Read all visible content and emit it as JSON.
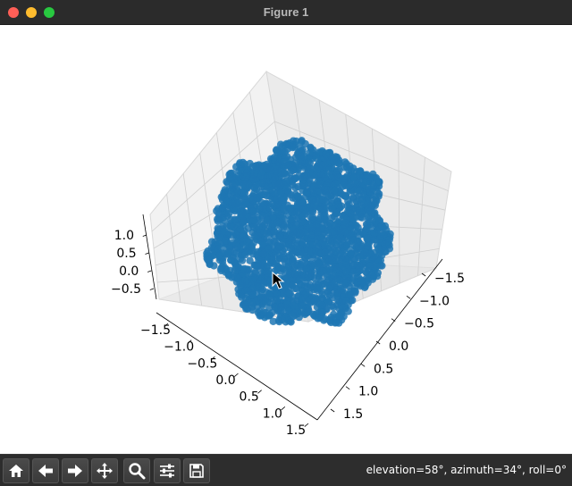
{
  "window": {
    "title": "Figure 1"
  },
  "toolbar": {
    "buttons": [
      {
        "name": "home-button",
        "icon": "home-icon"
      },
      {
        "name": "back-button",
        "icon": "arrow-left-icon"
      },
      {
        "name": "forward-button",
        "icon": "arrow-right-icon"
      },
      {
        "name": "pan-button",
        "icon": "move-icon"
      },
      {
        "name": "zoom-button",
        "icon": "magnifier-icon"
      },
      {
        "name": "configure-subplots-button",
        "icon": "sliders-icon"
      },
      {
        "name": "save-button",
        "icon": "floppy-disk-icon"
      }
    ],
    "status": "elevation=58°, azimuth=34°, roll=0°"
  },
  "chart_data": {
    "type": "scatter",
    "projection": "3d",
    "view": {
      "elevation": 58,
      "azimuth": 34,
      "roll": 0
    },
    "series": [
      {
        "color": "#1f77b4",
        "shape": "dense ball of points with radius about 1"
      }
    ],
    "axes": {
      "x": {
        "ticks": [
          "−1.5",
          "−1.0",
          "−0.5",
          "0.0",
          "0.5",
          "1.0",
          "1.5"
        ],
        "range": [
          -1.5,
          1.5
        ]
      },
      "y": {
        "ticks": [
          "−1.5",
          "−1.0",
          "−0.5",
          "0.0",
          "0.5",
          "1.0",
          "1.5"
        ],
        "range": [
          -1.5,
          1.5
        ]
      },
      "z": {
        "ticks": [
          "−0.5",
          "0.0",
          "0.5",
          "1.0"
        ],
        "range": [
          -0.8,
          1.2
        ]
      }
    },
    "grid": true,
    "title": "",
    "xlabel": "",
    "ylabel": "",
    "zlabel": ""
  }
}
